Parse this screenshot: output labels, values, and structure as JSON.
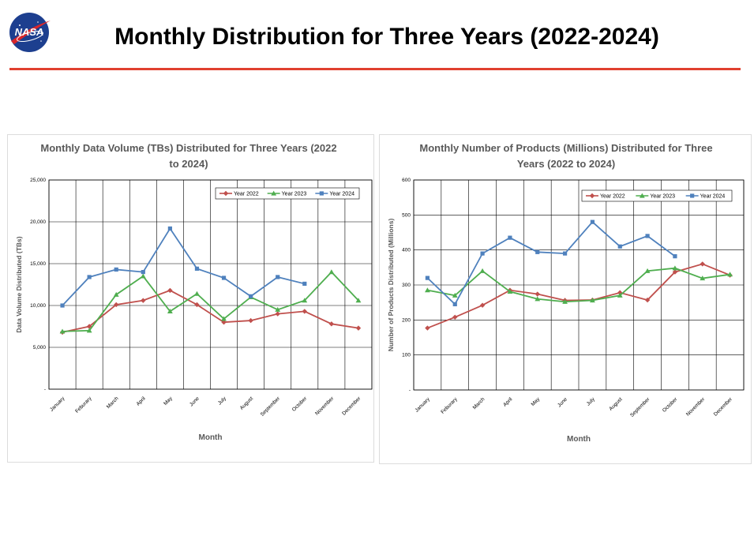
{
  "slide": {
    "title": "Monthly Distribution for Three Years (2022-2024)",
    "logo_text": "NASA"
  },
  "colors": {
    "accent_rule": "#e0402f",
    "year_2022": "#c0504d",
    "year_2023": "#4fae4f",
    "year_2024": "#4f81bd",
    "grid": "#000000"
  },
  "chart_data": [
    {
      "type": "line",
      "title_lines": [
        "Monthly Data Volume (TBs) Distributed for Three Years (2022",
        "to 2024)"
      ],
      "xlabel": "Month",
      "ylabel": "Data Volume Distributed (TBs)",
      "categories": [
        "January",
        "Feburary",
        "March",
        "April",
        "May",
        "June",
        "July",
        "August",
        "September",
        "October",
        "November",
        "December"
      ],
      "ylim": [
        0,
        25000
      ],
      "yticks": [
        0,
        5000,
        10000,
        15000,
        20000,
        25000
      ],
      "ytick_labels": [
        "-",
        "5,000",
        "10,000",
        "15,000",
        "20,000",
        "25,000"
      ],
      "grid": true,
      "legend_position": "top-right",
      "series": [
        {
          "name": "Year 2022",
          "color": "#c0504d",
          "marker": "diamond",
          "values": [
            6800,
            7500,
            10100,
            10600,
            11800,
            10100,
            8000,
            8200,
            9000,
            9300,
            7800,
            7300
          ]
        },
        {
          "name": "Year 2023",
          "color": "#4fae4f",
          "marker": "triangle",
          "values": [
            6900,
            7000,
            11300,
            13500,
            9300,
            11400,
            8400,
            11000,
            9500,
            10600,
            14000,
            10600
          ]
        },
        {
          "name": "Year 2024",
          "color": "#4f81bd",
          "marker": "square",
          "values": [
            10000,
            13400,
            14300,
            14000,
            19200,
            14400,
            13300,
            11100,
            13400,
            12600,
            null,
            null
          ]
        }
      ]
    },
    {
      "type": "line",
      "title_lines": [
        "Monthly Number of Products (Millions) Distributed for Three",
        "Years (2022 to 2024)"
      ],
      "xlabel": "Month",
      "ylabel": "Number of Products Distributed (Millions)",
      "categories": [
        "January",
        "Feburary",
        "March",
        "April",
        "May",
        "June",
        "July",
        "August",
        "September",
        "October",
        "November",
        "December"
      ],
      "ylim": [
        0,
        600
      ],
      "yticks": [
        0,
        100,
        200,
        300,
        400,
        500,
        600
      ],
      "ytick_labels": [
        "-",
        "100",
        "200",
        "300",
        "400",
        "500",
        "600"
      ],
      "grid": true,
      "legend_position": "top-right",
      "series": [
        {
          "name": "Year 2022",
          "color": "#c0504d",
          "marker": "diamond",
          "values": [
            177,
            208,
            242,
            285,
            274,
            256,
            257,
            278,
            257,
            337,
            360,
            328
          ]
        },
        {
          "name": "Year 2023",
          "color": "#4fae4f",
          "marker": "triangle",
          "values": [
            285,
            270,
            340,
            281,
            260,
            252,
            256,
            270,
            340,
            348,
            319,
            330
          ]
        },
        {
          "name": "Year 2024",
          "color": "#4f81bd",
          "marker": "square",
          "values": [
            320,
            245,
            390,
            435,
            394,
            390,
            480,
            410,
            440,
            382,
            null,
            null
          ]
        }
      ]
    }
  ]
}
